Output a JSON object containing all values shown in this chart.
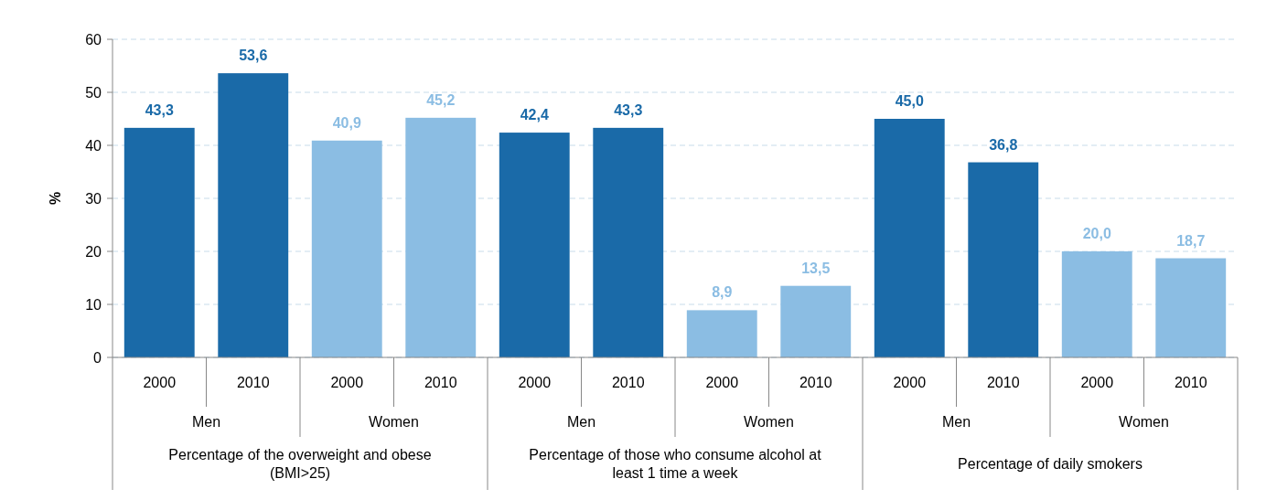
{
  "chart_data": {
    "type": "bar",
    "ylabel": "%",
    "categories": [
      "2000",
      "2010",
      "2000",
      "2010",
      "2000",
      "2010",
      "2000",
      "2010",
      "2000",
      "2010",
      "2000",
      "2010"
    ],
    "values": [
      43.3,
      53.6,
      40.9,
      45.2,
      42.4,
      43.3,
      8.9,
      13.5,
      45.0,
      36.8,
      20.0,
      18.7
    ],
    "colors": [
      "#1a6aa8",
      "#1a6aa8",
      "#8bbde3",
      "#8bbde3",
      "#1a6aa8",
      "#1a6aa8",
      "#8bbde3",
      "#8bbde3",
      "#1a6aa8",
      "#1a6aa8",
      "#8bbde3",
      "#8bbde3"
    ],
    "value_labels": [
      "43,3",
      "53,6",
      "40,9",
      "45,2",
      "42,4",
      "43,3",
      "8,9",
      "13,5",
      "45,0",
      "36,8",
      "20,0",
      "18,7"
    ],
    "ylim": [
      0,
      60
    ],
    "yticks": [
      0,
      10,
      20,
      30,
      40,
      50,
      60
    ],
    "grid": "y",
    "annotations": [
      "Men",
      "Women",
      "Men",
      "Women",
      "Men",
      "Women",
      "Percentage of the overweight and obese (BMI>25)",
      "Percentage of those who consume alcohol at least 1 time a week",
      "Percentage of daily smokers"
    ]
  }
}
